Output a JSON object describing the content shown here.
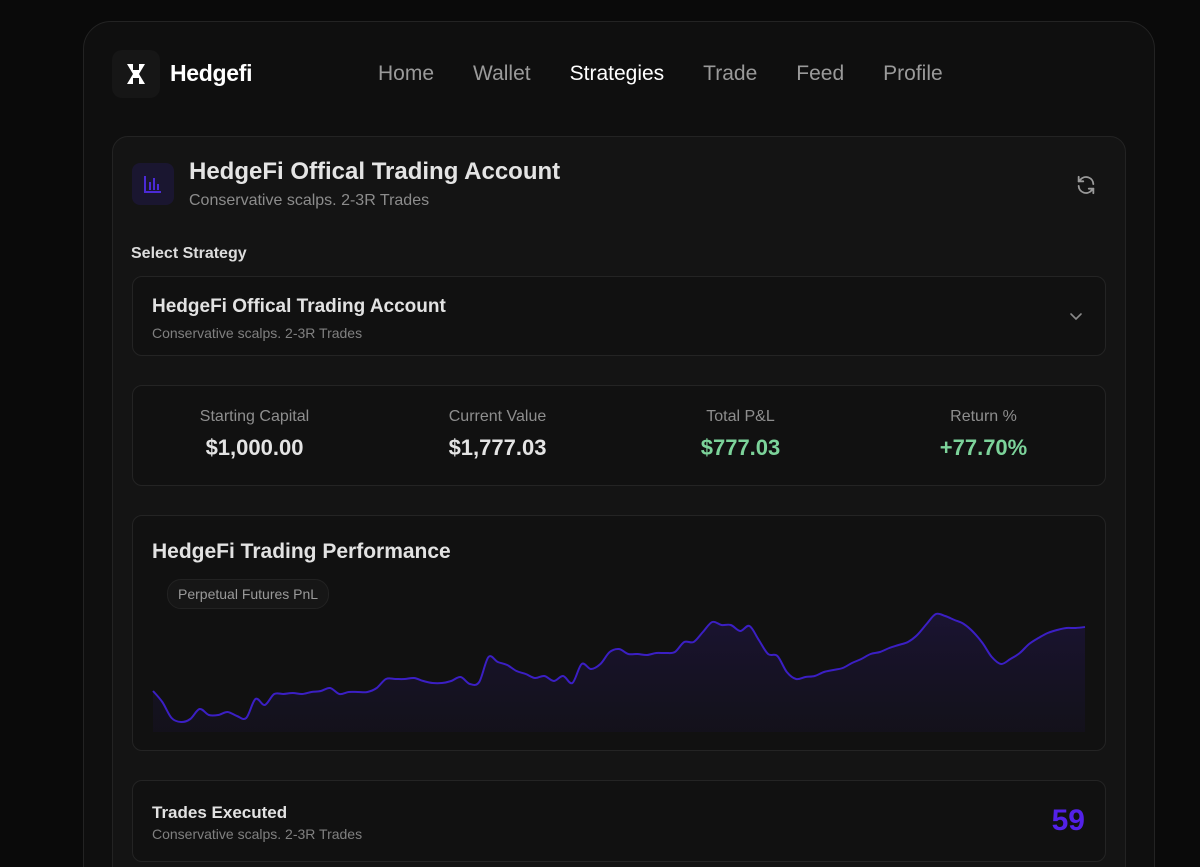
{
  "brand": {
    "name": "Hedgefi",
    "logo_icon": "hedgefi-h-logo"
  },
  "nav": {
    "items": [
      {
        "label": "Home",
        "active": false
      },
      {
        "label": "Wallet",
        "active": false
      },
      {
        "label": "Strategies",
        "active": true
      },
      {
        "label": "Trade",
        "active": false
      },
      {
        "label": "Feed",
        "active": false
      },
      {
        "label": "Profile",
        "active": false
      }
    ]
  },
  "account": {
    "title": "HedgeFi Offical Trading Account",
    "subtitle": "Conservative scalps. 2-3R Trades",
    "icon": "bar-chart-icon",
    "refresh_icon": "refresh-icon"
  },
  "select": {
    "label": "Select Strategy",
    "selected_title": "HedgeFi Offical Trading Account",
    "selected_subtitle": "Conservative scalps. 2-3R Trades"
  },
  "stats": [
    {
      "label": "Starting Capital",
      "value": "$1,000.00",
      "positive": false
    },
    {
      "label": "Current Value",
      "value": "$1,777.03",
      "positive": false
    },
    {
      "label": "Total P&L",
      "value": "$777.03",
      "positive": true
    },
    {
      "label": "Return %",
      "value": "+77.70%",
      "positive": true
    }
  ],
  "performance": {
    "title": "HedgeFi Trading Performance",
    "pill": "Perpetual Futures PnL"
  },
  "chart_data": {
    "type": "area",
    "title": "HedgeFi Trading Performance",
    "x": [
      0,
      1,
      2,
      3,
      4,
      5,
      6,
      7,
      8,
      9,
      10,
      11,
      12,
      13,
      14,
      15,
      16,
      17,
      18,
      19,
      20,
      21,
      22,
      23,
      24,
      25,
      26,
      27,
      28,
      29,
      30,
      31,
      32,
      33,
      34,
      35,
      36,
      37,
      38,
      39,
      40,
      41,
      42,
      43,
      44,
      45,
      46,
      47,
      48,
      49,
      50,
      51,
      52,
      53,
      54,
      55,
      56,
      57,
      58,
      59,
      60,
      61,
      62,
      63,
      64,
      65,
      66,
      67,
      68,
      69,
      70,
      71,
      72,
      73,
      74,
      75,
      76,
      77,
      78,
      79,
      80,
      81,
      82,
      83,
      84,
      85,
      86,
      87,
      88,
      89,
      90,
      91,
      92,
      93,
      94,
      95,
      96,
      97,
      98,
      99,
      100
    ],
    "values": [
      41,
      30,
      14,
      10,
      13,
      23,
      17,
      17,
      20,
      16,
      14,
      33,
      27,
      38,
      38,
      39,
      38,
      40,
      41,
      44,
      38,
      40,
      40,
      40,
      44,
      53,
      53,
      53,
      54,
      51,
      49,
      49,
      51,
      55,
      48,
      50,
      75,
      70,
      67,
      61,
      58,
      54,
      56,
      51,
      56,
      49,
      68,
      63,
      68,
      80,
      83,
      78,
      78,
      77,
      79,
      79,
      80,
      90,
      90,
      100,
      110,
      107,
      107,
      101,
      106,
      92,
      78,
      76,
      60,
      53,
      55,
      56,
      60,
      62,
      64,
      69,
      73,
      78,
      80,
      84,
      87,
      90,
      97,
      108,
      118,
      116,
      112,
      108,
      100,
      89,
      75,
      68,
      73,
      79,
      88,
      94,
      99,
      102,
      104,
      104,
      105
    ],
    "ylim": [
      0,
      160
    ],
    "color": "#3b1fc4",
    "grid": false
  },
  "trades": {
    "title": "Trades Executed",
    "subtitle": "Conservative scalps. 2-3R Trades",
    "count": "59"
  },
  "colors": {
    "background": "#0a0a0a",
    "accent": "#5321e8",
    "positive": "#7cd39a"
  }
}
